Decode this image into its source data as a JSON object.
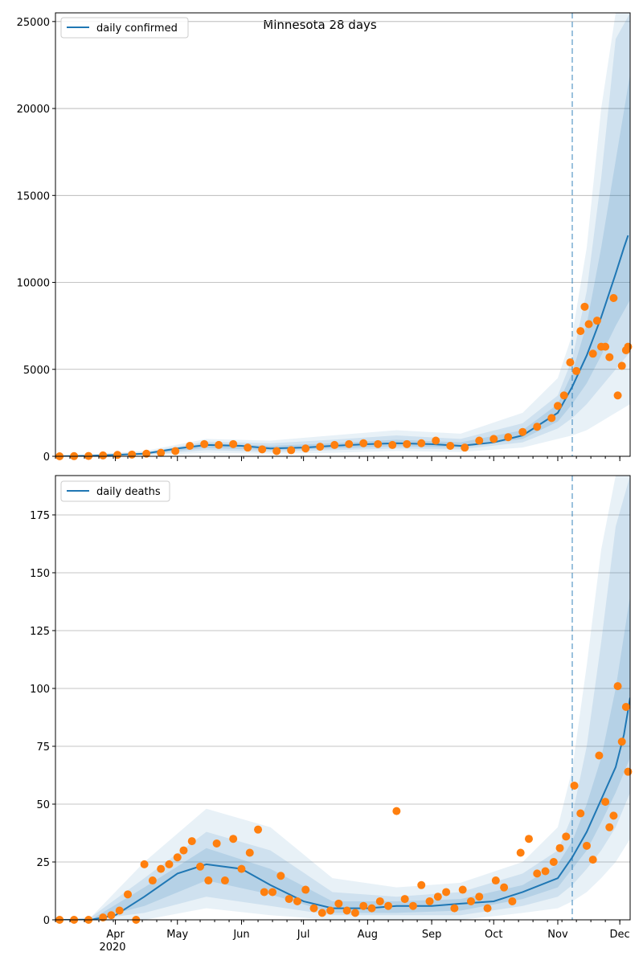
{
  "title": "Minnesota 28 days",
  "colors": {
    "median_line": "#1f77b4",
    "band": "#1f77b4",
    "observed": "#ff7f0e",
    "grid": "#b0b0b0",
    "forecast_start_line": "#1f77b4"
  },
  "chart_data": [
    {
      "type": "line",
      "series_name": "daily confirmed",
      "legend_position": "top-left",
      "ylim": [
        0,
        25500
      ],
      "yticks": [
        0,
        5000,
        10000,
        15000,
        20000,
        25000
      ],
      "xlim": [
        "2020-03-03",
        "2020-12-06"
      ],
      "grid": "y",
      "forecast_start": "2020-11-08",
      "median_series": {
        "x": [
          "2020-03-03",
          "2020-03-20",
          "2020-04-01",
          "2020-04-15",
          "2020-05-01",
          "2020-05-15",
          "2020-06-01",
          "2020-06-15",
          "2020-07-01",
          "2020-07-15",
          "2020-08-01",
          "2020-08-15",
          "2020-09-01",
          "2020-09-15",
          "2020-10-01",
          "2020-10-15",
          "2020-11-01",
          "2020-11-08",
          "2020-11-15",
          "2020-11-22",
          "2020-11-29",
          "2020-12-03",
          "2020-12-05"
        ],
        "y": [
          0,
          30,
          80,
          150,
          450,
          650,
          600,
          450,
          500,
          600,
          700,
          750,
          700,
          600,
          800,
          1200,
          2500,
          4000,
          5800,
          8000,
          10500,
          12000,
          12700
        ]
      },
      "bands": [
        {
          "level": "outer",
          "x": [
            "2020-03-03",
            "2020-04-15",
            "2020-05-15",
            "2020-06-15",
            "2020-07-15",
            "2020-08-15",
            "2020-09-15",
            "2020-10-15",
            "2020-11-01",
            "2020-11-08",
            "2020-11-15",
            "2020-11-22",
            "2020-11-29",
            "2020-12-06"
          ],
          "low": [
            0,
            50,
            200,
            150,
            200,
            300,
            250,
            500,
            1000,
            1200,
            1500,
            2000,
            2500,
            3000
          ],
          "high": [
            0,
            300,
            1000,
            900,
            1200,
            1500,
            1300,
            2500,
            4500,
            7000,
            12000,
            20000,
            25500,
            25500
          ]
        },
        {
          "level": "middle",
          "x": [
            "2020-03-03",
            "2020-04-15",
            "2020-05-15",
            "2020-06-15",
            "2020-07-15",
            "2020-08-15",
            "2020-09-15",
            "2020-10-15",
            "2020-11-01",
            "2020-11-08",
            "2020-11-15",
            "2020-11-22",
            "2020-11-29",
            "2020-12-06"
          ],
          "low": [
            0,
            80,
            350,
            250,
            350,
            450,
            400,
            800,
            1600,
            2200,
            3000,
            4000,
            5000,
            6000
          ],
          "high": [
            0,
            220,
            850,
            750,
            950,
            1200,
            1000,
            1900,
            3500,
            5600,
            9500,
            16000,
            24000,
            25500
          ]
        },
        {
          "level": "inner",
          "x": [
            "2020-03-03",
            "2020-04-15",
            "2020-05-15",
            "2020-06-15",
            "2020-07-15",
            "2020-08-15",
            "2020-09-15",
            "2020-10-15",
            "2020-11-01",
            "2020-11-08",
            "2020-11-15",
            "2020-11-22",
            "2020-11-29",
            "2020-12-06"
          ],
          "low": [
            0,
            110,
            480,
            350,
            450,
            580,
            500,
            1000,
            2000,
            3000,
            4200,
            5800,
            7500,
            9000
          ],
          "high": [
            0,
            180,
            750,
            600,
            750,
            950,
            800,
            1500,
            3000,
            4800,
            7600,
            12000,
            17000,
            22000
          ]
        }
      ],
      "observed": {
        "x": [
          "2020-03-05",
          "2020-03-12",
          "2020-03-19",
          "2020-03-26",
          "2020-04-02",
          "2020-04-09",
          "2020-04-16",
          "2020-04-23",
          "2020-04-30",
          "2020-05-07",
          "2020-05-14",
          "2020-05-21",
          "2020-05-28",
          "2020-06-04",
          "2020-06-11",
          "2020-06-18",
          "2020-06-25",
          "2020-07-02",
          "2020-07-09",
          "2020-07-16",
          "2020-07-23",
          "2020-07-30",
          "2020-08-06",
          "2020-08-13",
          "2020-08-20",
          "2020-08-27",
          "2020-09-03",
          "2020-09-10",
          "2020-09-17",
          "2020-09-24",
          "2020-10-01",
          "2020-10-08",
          "2020-10-15",
          "2020-10-22",
          "2020-10-29",
          "2020-11-01",
          "2020-11-04",
          "2020-11-07",
          "2020-11-10",
          "2020-11-12",
          "2020-11-14",
          "2020-11-16",
          "2020-11-18",
          "2020-11-20",
          "2020-11-22",
          "2020-11-24",
          "2020-11-26",
          "2020-11-28",
          "2020-11-30",
          "2020-12-02",
          "2020-12-04",
          "2020-12-05"
        ],
        "y": [
          0,
          10,
          20,
          50,
          80,
          100,
          150,
          200,
          300,
          600,
          700,
          650,
          700,
          500,
          400,
          300,
          350,
          450,
          550,
          650,
          700,
          750,
          700,
          650,
          700,
          750,
          900,
          600,
          500,
          900,
          1000,
          1100,
          1400,
          1700,
          2200,
          2900,
          3500,
          5400,
          4900,
          7200,
          8600,
          7600,
          5900,
          7800,
          6300,
          6300,
          5700,
          9100,
          3500,
          5200,
          6100,
          6300
        ]
      }
    },
    {
      "type": "line",
      "series_name": "daily deaths",
      "legend_position": "top-left",
      "ylim": [
        0,
        192
      ],
      "yticks": [
        0,
        25,
        50,
        75,
        100,
        125,
        150,
        175
      ],
      "xlim": [
        "2020-03-03",
        "2020-12-06"
      ],
      "xtick_labels": [
        "Apr",
        "May",
        "Jun",
        "Jul",
        "Aug",
        "Sep",
        "Oct",
        "Nov",
        "Dec"
      ],
      "xtick_dates": [
        "2020-04-01",
        "2020-05-01",
        "2020-06-01",
        "2020-07-01",
        "2020-08-01",
        "2020-09-01",
        "2020-10-01",
        "2020-11-01",
        "2020-12-01"
      ],
      "year_label": "2020",
      "grid": "y",
      "forecast_start": "2020-11-08",
      "median_series": {
        "x": [
          "2020-03-03",
          "2020-03-20",
          "2020-04-01",
          "2020-04-15",
          "2020-05-01",
          "2020-05-15",
          "2020-06-01",
          "2020-06-15",
          "2020-07-01",
          "2020-07-15",
          "2020-08-01",
          "2020-08-15",
          "2020-09-01",
          "2020-09-15",
          "2020-10-01",
          "2020-10-15",
          "2020-11-01",
          "2020-11-08",
          "2020-11-15",
          "2020-11-22",
          "2020-11-29",
          "2020-12-03",
          "2020-12-06"
        ],
        "y": [
          0,
          0,
          2,
          10,
          20,
          24,
          22,
          15,
          8,
          5,
          5,
          6,
          6,
          7,
          8,
          12,
          18,
          27,
          38,
          52,
          66,
          80,
          96
        ]
      },
      "bands": [
        {
          "level": "outer",
          "x": [
            "2020-03-03",
            "2020-03-20",
            "2020-04-15",
            "2020-05-15",
            "2020-06-15",
            "2020-07-15",
            "2020-08-15",
            "2020-09-15",
            "2020-10-15",
            "2020-11-01",
            "2020-11-08",
            "2020-11-15",
            "2020-11-22",
            "2020-11-29",
            "2020-12-06"
          ],
          "low": [
            0,
            0,
            0,
            5,
            2,
            0,
            0,
            0,
            3,
            5,
            8,
            12,
            18,
            25,
            35
          ],
          "high": [
            0,
            1,
            25,
            48,
            40,
            18,
            14,
            16,
            25,
            40,
            65,
            110,
            160,
            192,
            192
          ]
        },
        {
          "level": "middle",
          "x": [
            "2020-03-03",
            "2020-03-20",
            "2020-04-15",
            "2020-05-15",
            "2020-06-15",
            "2020-07-15",
            "2020-08-15",
            "2020-09-15",
            "2020-10-15",
            "2020-11-01",
            "2020-11-08",
            "2020-11-15",
            "2020-11-22",
            "2020-11-29",
            "2020-12-06"
          ],
          "low": [
            0,
            0,
            3,
            10,
            6,
            2,
            2,
            2,
            6,
            10,
            15,
            22,
            30,
            40,
            55
          ],
          "high": [
            0,
            1,
            18,
            38,
            30,
            12,
            10,
            12,
            20,
            30,
            45,
            75,
            120,
            170,
            192
          ]
        },
        {
          "level": "inner",
          "x": [
            "2020-03-03",
            "2020-03-20",
            "2020-04-15",
            "2020-05-15",
            "2020-06-15",
            "2020-07-15",
            "2020-08-15",
            "2020-09-15",
            "2020-10-15",
            "2020-11-01",
            "2020-11-08",
            "2020-11-15",
            "2020-11-22",
            "2020-11-29",
            "2020-12-06"
          ],
          "low": [
            0,
            0,
            6,
            17,
            11,
            3,
            3,
            4,
            9,
            14,
            22,
            30,
            42,
            55,
            70
          ],
          "high": [
            0,
            0,
            14,
            31,
            22,
            8,
            8,
            9,
            15,
            24,
            34,
            50,
            70,
            100,
            140
          ]
        }
      ],
      "observed": {
        "x": [
          "2020-03-05",
          "2020-03-12",
          "2020-03-19",
          "2020-03-26",
          "2020-03-30",
          "2020-04-03",
          "2020-04-07",
          "2020-04-11",
          "2020-04-15",
          "2020-04-19",
          "2020-04-23",
          "2020-04-27",
          "2020-05-01",
          "2020-05-04",
          "2020-05-08",
          "2020-05-12",
          "2020-05-16",
          "2020-05-20",
          "2020-05-24",
          "2020-05-28",
          "2020-06-01",
          "2020-06-05",
          "2020-06-09",
          "2020-06-12",
          "2020-06-16",
          "2020-06-20",
          "2020-06-24",
          "2020-06-28",
          "2020-07-02",
          "2020-07-06",
          "2020-07-10",
          "2020-07-14",
          "2020-07-18",
          "2020-07-22",
          "2020-07-26",
          "2020-07-30",
          "2020-08-03",
          "2020-08-07",
          "2020-08-11",
          "2020-08-15",
          "2020-08-19",
          "2020-08-23",
          "2020-08-27",
          "2020-08-31",
          "2020-09-04",
          "2020-09-08",
          "2020-09-12",
          "2020-09-16",
          "2020-09-20",
          "2020-09-24",
          "2020-09-28",
          "2020-10-02",
          "2020-10-06",
          "2020-10-10",
          "2020-10-14",
          "2020-10-18",
          "2020-10-22",
          "2020-10-26",
          "2020-10-30",
          "2020-11-02",
          "2020-11-05",
          "2020-11-09",
          "2020-11-12",
          "2020-11-15",
          "2020-11-18",
          "2020-11-21",
          "2020-11-24",
          "2020-11-26",
          "2020-11-28",
          "2020-11-30",
          "2020-12-02",
          "2020-12-04",
          "2020-12-05"
        ],
        "y": [
          0,
          0,
          0,
          1,
          2,
          4,
          11,
          0,
          24,
          17,
          22,
          24,
          27,
          30,
          34,
          23,
          17,
          33,
          17,
          35,
          22,
          29,
          39,
          12,
          12,
          19,
          9,
          8,
          13,
          5,
          3,
          4,
          7,
          4,
          3,
          6,
          5,
          8,
          6,
          47,
          9,
          6,
          15,
          8,
          10,
          12,
          5,
          13,
          8,
          10,
          5,
          17,
          14,
          8,
          29,
          35,
          20,
          21,
          25,
          31,
          36,
          58,
          46,
          32,
          26,
          71,
          51,
          40,
          45,
          101,
          77,
          92,
          64
        ]
      }
    }
  ]
}
